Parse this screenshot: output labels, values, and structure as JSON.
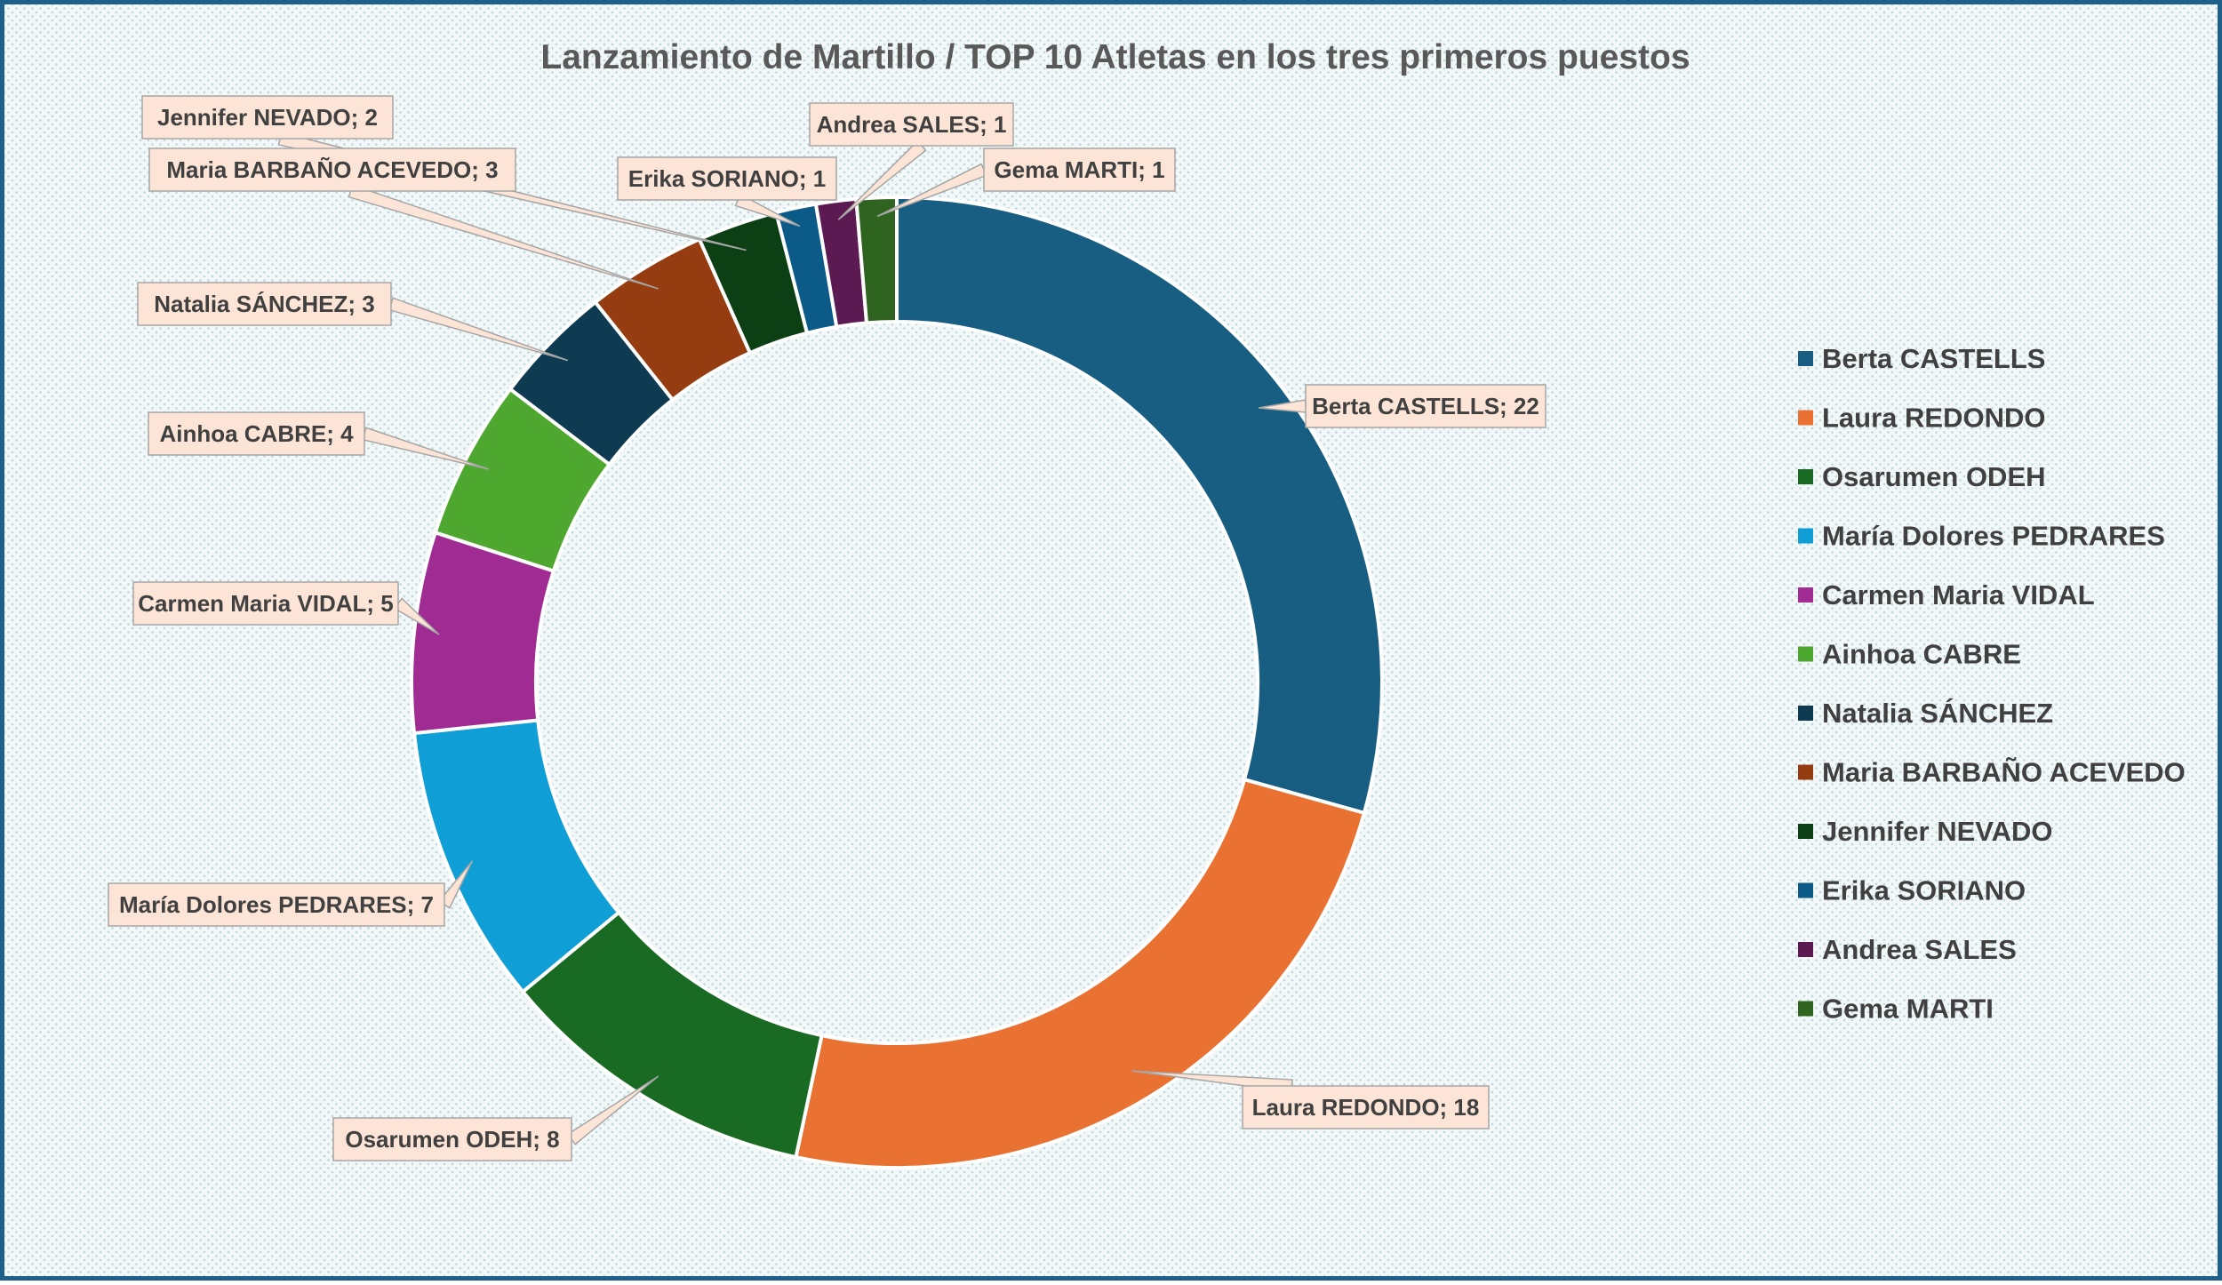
{
  "chart_data": {
    "type": "pie",
    "variant": "doughnut",
    "title": "Lanzamiento de Martillo / TOP 10 Atletas en los tres primeros puestos",
    "categories": [
      "Berta CASTELLS",
      "Laura REDONDO",
      "Osarumen ODEH",
      "María Dolores PEDRARES",
      "Carmen Maria VIDAL",
      "Ainhoa CABRE",
      "Natalia SÁNCHEZ",
      "Maria BARBAÑO ACEVEDO",
      "Jennifer NEVADO",
      "Erika SORIANO",
      "Andrea SALES",
      "Gema MARTI"
    ],
    "values": [
      22,
      18,
      8,
      7,
      5,
      4,
      3,
      3,
      2,
      1,
      1,
      1
    ],
    "data_labels": [
      "Berta CASTELLS; 22",
      "Laura REDONDO; 18",
      "Osarumen ODEH; 8",
      "María Dolores PEDRARES; 7",
      "Carmen Maria VIDAL; 5",
      "Ainhoa CABRE; 4",
      "Natalia SÁNCHEZ; 3",
      "Maria BARBAÑO ACEVEDO; 3",
      "Jennifer NEVADO; 2",
      "Erika SORIANO; 1",
      "Andrea SALES; 1",
      "Gema MARTI; 1"
    ],
    "colors": [
      "#175e82",
      "#e97132",
      "#196b24",
      "#0f9ed5",
      "#a02b93",
      "#4ea72e",
      "#0e3a52",
      "#963c11",
      "#0d3f15",
      "#0b5a87",
      "#5c1a52",
      "#2e6420"
    ],
    "legend": "right",
    "start_angle": "clockwise from top"
  }
}
